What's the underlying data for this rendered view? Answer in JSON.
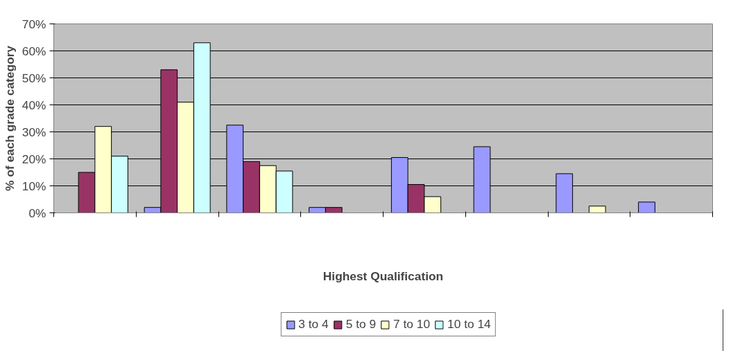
{
  "chart_data": {
    "type": "bar",
    "xlabel": "Highest Qualification",
    "ylabel": "% of each grade category",
    "categories": [
      null,
      null,
      null,
      null,
      null,
      null,
      null,
      null
    ],
    "series": [
      {
        "name": "3 to 4",
        "color": "#9999ff",
        "values": [
          null,
          2,
          32.5,
          2,
          20.5,
          24.5,
          14.5,
          4
        ]
      },
      {
        "name": "5 to 9",
        "color": "#993366",
        "values": [
          15,
          53,
          19,
          2,
          10.5,
          null,
          null,
          null
        ]
      },
      {
        "name": "7 to 10",
        "color": "#ffffcc",
        "values": [
          32,
          41,
          17.5,
          null,
          6,
          null,
          2.5,
          null
        ]
      },
      {
        "name": "10 to 14",
        "color": "#ccffff",
        "values": [
          21,
          63,
          15.5,
          null,
          null,
          null,
          null,
          null
        ]
      }
    ],
    "ylim": [
      0,
      70
    ],
    "yticks": [
      {
        "value": 0,
        "label": "0%"
      },
      {
        "value": 10,
        "label": "10%"
      },
      {
        "value": 20,
        "label": "20%"
      },
      {
        "value": 30,
        "label": "30%"
      },
      {
        "value": 40,
        "label": "40%"
      },
      {
        "value": 50,
        "label": "50%"
      },
      {
        "value": 60,
        "label": "60%"
      },
      {
        "value": 70,
        "label": "70%"
      }
    ],
    "grid": "y",
    "legend": "bottom"
  }
}
